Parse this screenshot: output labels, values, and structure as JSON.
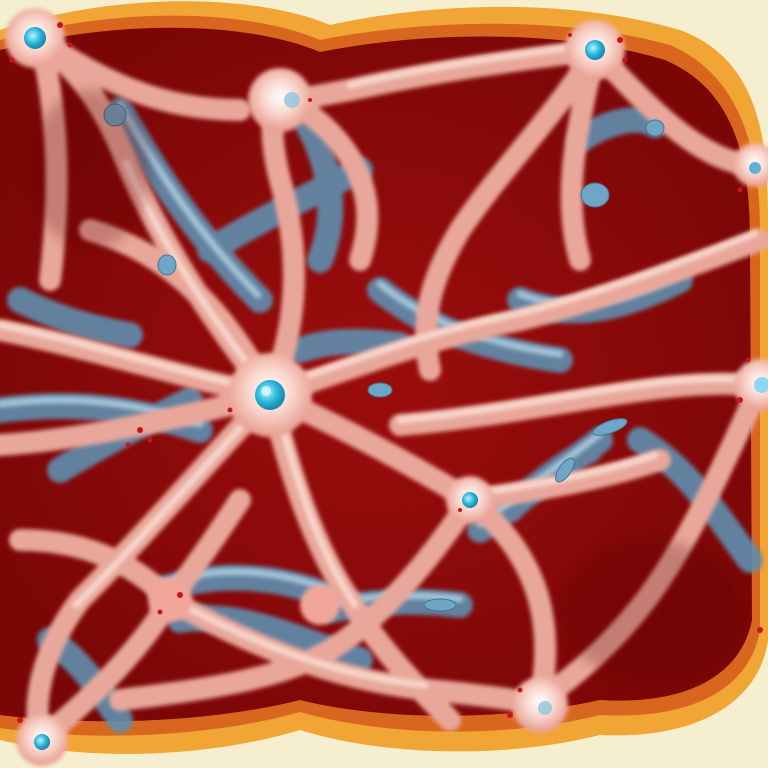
{
  "image": {
    "kind": "illustration",
    "palette": {
      "background": "#f6efcf",
      "rim_outer": "#f3b23a",
      "rim_inner": "#d9691f",
      "tissue": "#8e0a0a",
      "tissue_dark": "#6e0505",
      "dendrite": "#f0b8a8",
      "dendrite_highlight": "#fbe1d8",
      "blue_process": "#6f9fbf",
      "blue_highlight": "#bfe0f0",
      "nucleus": "#27b3d8",
      "nucleus_core": "#8ae6f7",
      "red_speckle": "#c8141a"
    }
  }
}
